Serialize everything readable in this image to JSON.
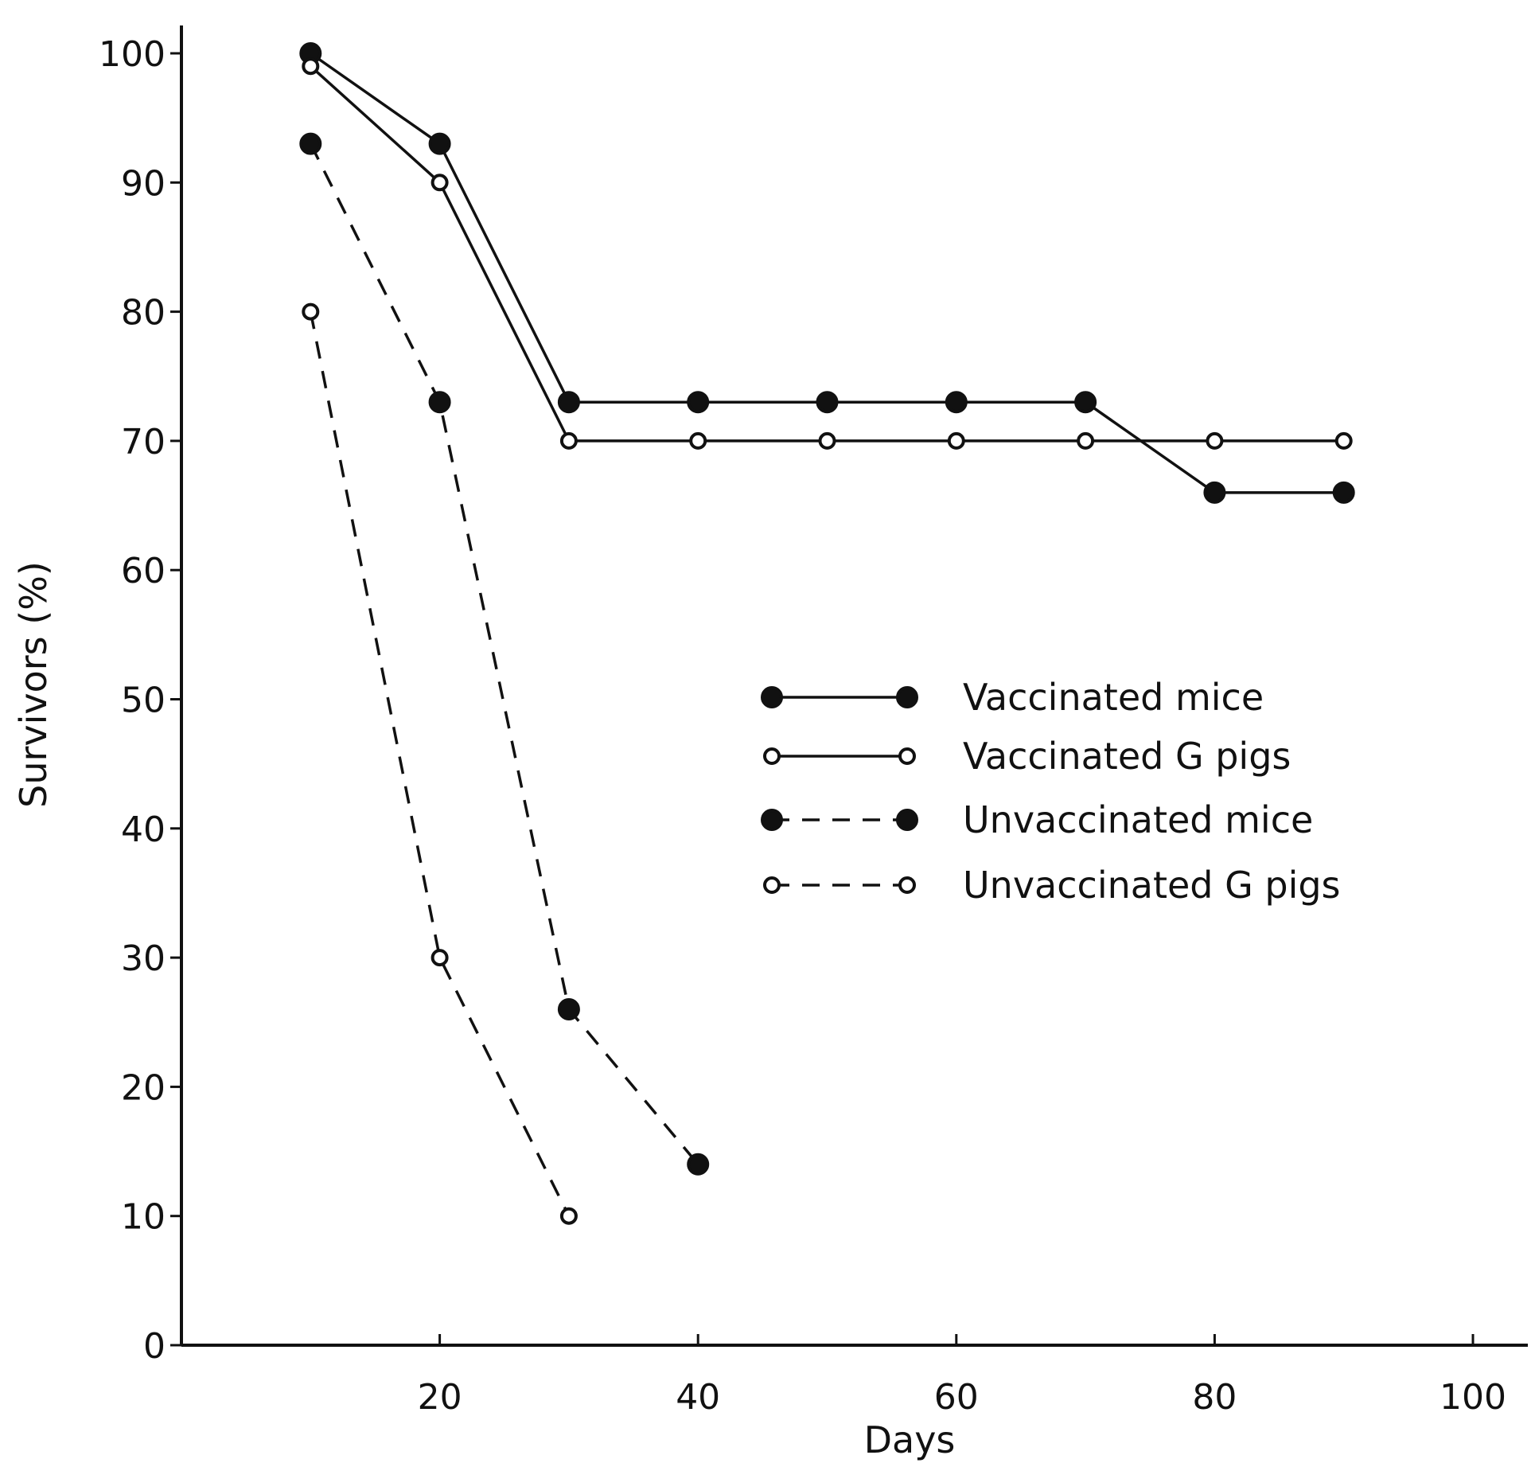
{
  "chart_data": {
    "type": "line",
    "title": "",
    "xlabel": "Days",
    "ylabel": "Survivors (%)",
    "xlim": [
      0,
      100
    ],
    "ylim": [
      0,
      100
    ],
    "x_ticks": [
      20,
      40,
      60,
      80,
      100
    ],
    "y_ticks": [
      0,
      10,
      20,
      30,
      40,
      50,
      60,
      70,
      80,
      90,
      100
    ],
    "grid": false,
    "legend_position": "center-right",
    "series": [
      {
        "name": "Vaccinated mice",
        "marker": "filled",
        "line": "solid",
        "color": "#111111",
        "points": [
          [
            10,
            100
          ],
          [
            20,
            93
          ],
          [
            30,
            73
          ],
          [
            40,
            73
          ],
          [
            50,
            73
          ],
          [
            60,
            73
          ],
          [
            70,
            73
          ],
          [
            80,
            66
          ],
          [
            90,
            66
          ]
        ]
      },
      {
        "name": "Vaccinated G pigs",
        "marker": "open",
        "line": "solid",
        "color": "#111111",
        "points": [
          [
            10,
            99
          ],
          [
            20,
            90
          ],
          [
            30,
            70
          ],
          [
            40,
            70
          ],
          [
            50,
            70
          ],
          [
            60,
            70
          ],
          [
            70,
            70
          ],
          [
            80,
            70
          ],
          [
            90,
            70
          ]
        ]
      },
      {
        "name": "Unvaccinated mice",
        "marker": "filled",
        "line": "dashed",
        "color": "#111111",
        "points": [
          [
            10,
            93
          ],
          [
            20,
            73
          ],
          [
            30,
            26
          ],
          [
            40,
            14
          ]
        ]
      },
      {
        "name": "Unvaccinated G pigs",
        "marker": "open",
        "line": "dashed",
        "color": "#111111",
        "points": [
          [
            10,
            80
          ],
          [
            20,
            30
          ],
          [
            30,
            10
          ]
        ]
      }
    ]
  }
}
